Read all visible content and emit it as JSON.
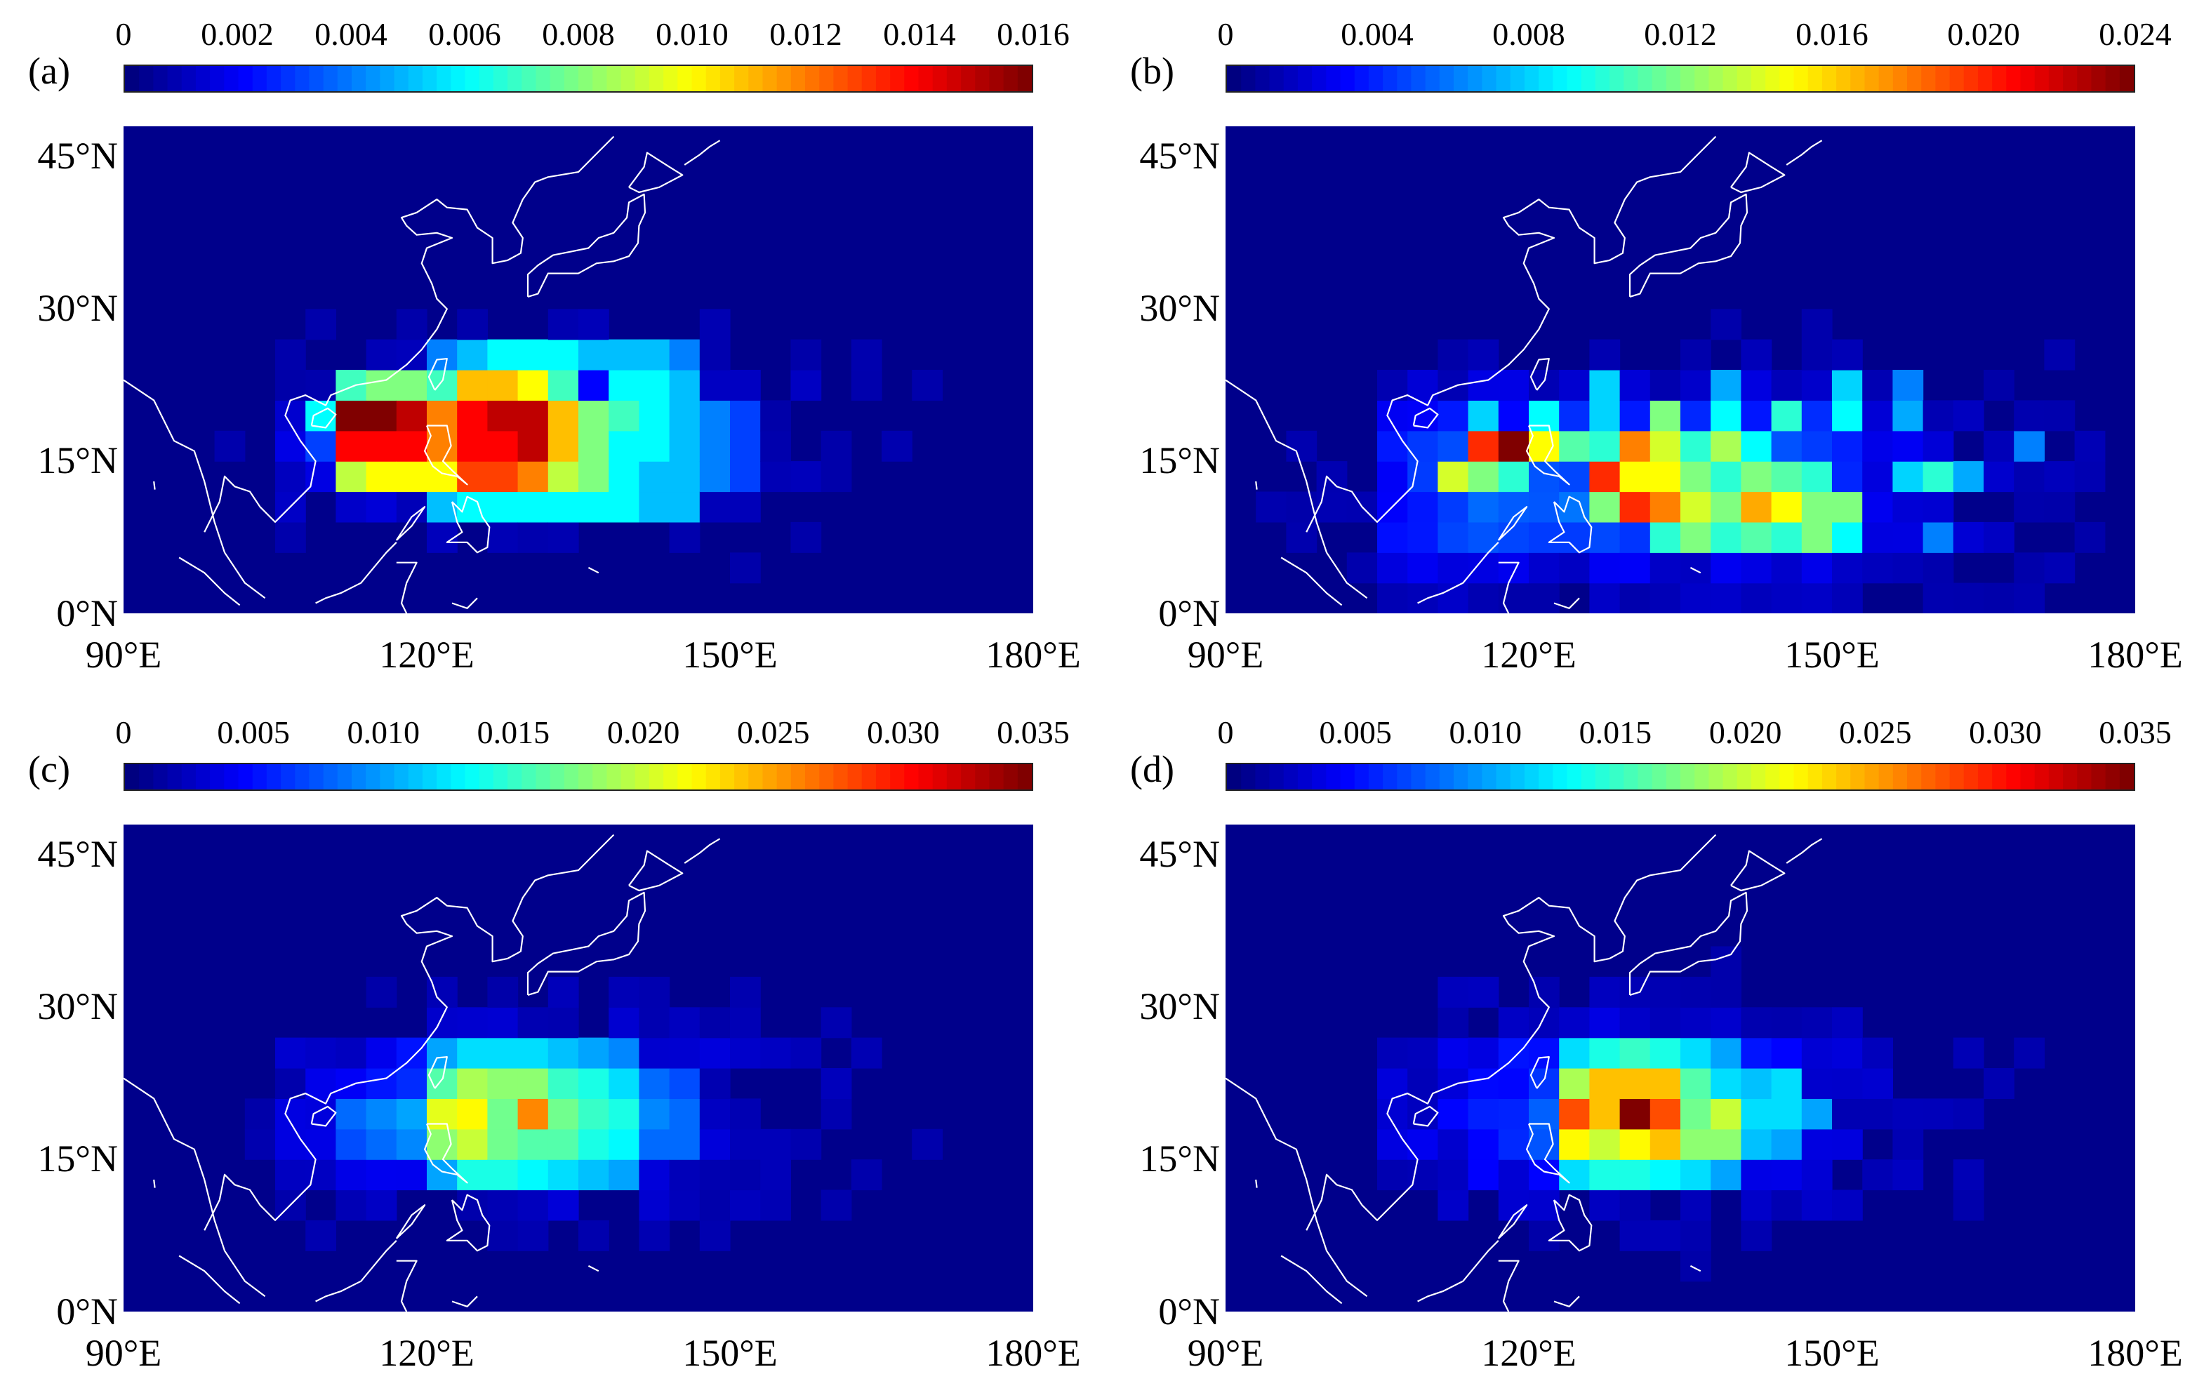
{
  "figure": {
    "lat_labels": [
      "45°N",
      "30°N",
      "15°N",
      "0°N"
    ],
    "lon_labels": [
      "90°E",
      "120°E",
      "150°E",
      "180°E"
    ]
  },
  "panels": [
    {
      "label": "(a)",
      "colorbar": {
        "ticks": [
          "0",
          "0.002",
          "0.004",
          "0.006",
          "0.008",
          "0.010",
          "0.012",
          "0.014",
          "0.016"
        ],
        "max": 0.016
      },
      "peak": {
        "lon": [
          122,
          134
        ],
        "lat": [
          15,
          20
        ]
      }
    },
    {
      "label": "(b)",
      "colorbar": {
        "ticks": [
          "0",
          "0.004",
          "0.008",
          "0.012",
          "0.016",
          "0.020",
          "0.024"
        ],
        "max": 0.024
      },
      "peak": {
        "lon": [
          114,
          146
        ],
        "lat": [
          8,
          18
        ]
      }
    },
    {
      "label": "(c)",
      "colorbar": {
        "ticks": [
          "0",
          "0.005",
          "0.010",
          "0.015",
          "0.020",
          "0.025",
          "0.030",
          "0.035"
        ],
        "max": 0.035
      },
      "peak": {
        "lon": [
          122,
          134
        ],
        "lat": [
          16,
          23
        ]
      }
    },
    {
      "label": "(d)",
      "colorbar": {
        "ticks": [
          "0",
          "0.005",
          "0.010",
          "0.015",
          "0.020",
          "0.025",
          "0.030",
          "0.035"
        ],
        "max": 0.035
      },
      "peak": {
        "lon": [
          123,
          136
        ],
        "lat": [
          16,
          24
        ]
      }
    }
  ],
  "chart_data": [
    {
      "type": "heatmap",
      "title": "(a)",
      "xlim": [
        90,
        180
      ],
      "ylim": [
        0,
        48
      ],
      "cell_deg": 3,
      "colorbar_range": [
        0,
        0.016
      ],
      "colormap": "jet",
      "cells": [
        [
          111,
          20,
          0.016
        ],
        [
          114,
          20,
          0.016
        ],
        [
          117,
          20,
          0.015
        ],
        [
          120,
          20,
          0.012
        ],
        [
          123,
          20,
          0.014
        ],
        [
          126,
          20,
          0.015
        ],
        [
          129,
          20,
          0.015
        ],
        [
          132,
          20,
          0.011
        ],
        [
          135,
          20,
          0.008
        ],
        [
          111,
          17,
          0.014
        ],
        [
          114,
          17,
          0.014
        ],
        [
          117,
          17,
          0.014
        ],
        [
          120,
          17,
          0.012
        ],
        [
          123,
          17,
          0.014
        ],
        [
          126,
          17,
          0.014
        ],
        [
          129,
          17,
          0.015
        ],
        [
          132,
          17,
          0.011
        ],
        [
          135,
          17,
          0.008
        ],
        [
          111,
          14,
          0.009
        ],
        [
          114,
          14,
          0.01
        ],
        [
          117,
          14,
          0.01
        ],
        [
          120,
          14,
          0.01
        ],
        [
          123,
          14,
          0.013
        ],
        [
          126,
          14,
          0.013
        ],
        [
          129,
          14,
          0.012
        ],
        [
          132,
          14,
          0.009
        ],
        [
          135,
          14,
          0.008
        ],
        [
          123,
          23,
          0.011
        ],
        [
          126,
          23,
          0.011
        ],
        [
          129,
          23,
          0.01
        ],
        [
          132,
          23,
          0.007
        ],
        [
          120,
          23,
          0.007
        ],
        [
          117,
          23,
          0.008
        ],
        [
          114,
          23,
          0.008
        ],
        [
          111,
          23,
          0.007
        ],
        [
          138,
          20,
          0.007
        ],
        [
          141,
          20,
          0.006
        ],
        [
          144,
          20,
          0.005
        ],
        [
          138,
          17,
          0.006
        ],
        [
          141,
          17,
          0.006
        ],
        [
          144,
          17,
          0.005
        ],
        [
          138,
          14,
          0.006
        ],
        [
          141,
          14,
          0.005
        ],
        [
          144,
          14,
          0.005
        ],
        [
          138,
          23,
          0.006
        ],
        [
          141,
          23,
          0.006
        ],
        [
          144,
          23,
          0.005
        ],
        [
          147,
          20,
          0.004
        ],
        [
          150,
          20,
          0.003
        ],
        [
          147,
          17,
          0.004
        ],
        [
          150,
          17,
          0.003
        ],
        [
          147,
          14,
          0.004
        ],
        [
          150,
          14,
          0.003
        ],
        [
          120,
          11,
          0.005
        ],
        [
          123,
          11,
          0.006
        ],
        [
          126,
          11,
          0.006
        ],
        [
          129,
          11,
          0.006
        ],
        [
          132,
          11,
          0.006
        ],
        [
          135,
          11,
          0.006
        ],
        [
          138,
          11,
          0.006
        ],
        [
          141,
          11,
          0.005
        ],
        [
          144,
          11,
          0.005
        ],
        [
          126,
          26,
          0.006
        ],
        [
          129,
          26,
          0.006
        ],
        [
          132,
          26,
          0.006
        ],
        [
          135,
          26,
          0.005
        ],
        [
          138,
          26,
          0.005
        ],
        [
          141,
          26,
          0.005
        ],
        [
          144,
          26,
          0.004
        ],
        [
          123,
          26,
          0.005
        ],
        [
          120,
          26,
          0.004
        ],
        [
          108,
          20,
          0.006
        ],
        [
          108,
          17,
          0.003
        ]
      ]
    },
    {
      "type": "heatmap",
      "title": "(b)",
      "xlim": [
        90,
        180
      ],
      "ylim": [
        0,
        48
      ],
      "cell_deg": 3,
      "colorbar_range": [
        0,
        0.024
      ],
      "colormap": "jet",
      "cells": [
        [
          114,
          17,
          0.02
        ],
        [
          117,
          17,
          0.024
        ],
        [
          120,
          17,
          0.015
        ],
        [
          123,
          17,
          0.011
        ],
        [
          126,
          17,
          0.01
        ],
        [
          129,
          17,
          0.018
        ],
        [
          132,
          17,
          0.014
        ],
        [
          135,
          17,
          0.01
        ],
        [
          138,
          17,
          0.013
        ],
        [
          141,
          17,
          0.009
        ],
        [
          111,
          14,
          0.014
        ],
        [
          114,
          14,
          0.012
        ],
        [
          117,
          14,
          0.01
        ],
        [
          126,
          14,
          0.02
        ],
        [
          129,
          14,
          0.015
        ],
        [
          132,
          14,
          0.015
        ],
        [
          135,
          14,
          0.012
        ],
        [
          138,
          14,
          0.01
        ],
        [
          141,
          14,
          0.012
        ],
        [
          144,
          14,
          0.011
        ],
        [
          147,
          14,
          0.01
        ],
        [
          126,
          11,
          0.012
        ],
        [
          129,
          11,
          0.02
        ],
        [
          132,
          11,
          0.018
        ],
        [
          135,
          11,
          0.014
        ],
        [
          138,
          11,
          0.012
        ],
        [
          141,
          11,
          0.017
        ],
        [
          144,
          11,
          0.015
        ],
        [
          147,
          11,
          0.012
        ],
        [
          150,
          11,
          0.012
        ],
        [
          132,
          8,
          0.01
        ],
        [
          135,
          8,
          0.012
        ],
        [
          138,
          8,
          0.01
        ],
        [
          141,
          8,
          0.011
        ],
        [
          144,
          8,
          0.01
        ],
        [
          147,
          8,
          0.012
        ],
        [
          150,
          8,
          0.009
        ],
        [
          114,
          20,
          0.008
        ],
        [
          120,
          20,
          0.009
        ],
        [
          126,
          20,
          0.008
        ],
        [
          132,
          20,
          0.012
        ],
        [
          138,
          20,
          0.009
        ],
        [
          144,
          20,
          0.01
        ],
        [
          150,
          20,
          0.009
        ],
        [
          156,
          20,
          0.007
        ],
        [
          126,
          23,
          0.008
        ],
        [
          138,
          23,
          0.007
        ],
        [
          150,
          23,
          0.008
        ],
        [
          156,
          23,
          0.006
        ],
        [
          159,
          14,
          0.01
        ],
        [
          162,
          14,
          0.007
        ],
        [
          156,
          14,
          0.008
        ],
        [
          159,
          8,
          0.006
        ],
        [
          168,
          17,
          0.006
        ]
      ]
    },
    {
      "type": "heatmap",
      "title": "(c)",
      "xlim": [
        90,
        180
      ],
      "ylim": [
        0,
        48
      ],
      "cell_deg": 3,
      "colorbar_range": [
        0,
        0.035
      ],
      "colormap": "jet",
      "cells": [
        [
          120,
          20,
          0.021
        ],
        [
          123,
          20,
          0.022
        ],
        [
          126,
          20,
          0.017
        ],
        [
          129,
          20,
          0.026
        ],
        [
          132,
          20,
          0.017
        ],
        [
          135,
          20,
          0.015
        ],
        [
          138,
          20,
          0.014
        ],
        [
          120,
          17,
          0.018
        ],
        [
          123,
          17,
          0.02
        ],
        [
          126,
          17,
          0.017
        ],
        [
          129,
          17,
          0.016
        ],
        [
          132,
          17,
          0.016
        ],
        [
          135,
          17,
          0.014
        ],
        [
          138,
          17,
          0.013
        ],
        [
          120,
          23,
          0.016
        ],
        [
          123,
          23,
          0.019
        ],
        [
          126,
          23,
          0.018
        ],
        [
          129,
          23,
          0.018
        ],
        [
          132,
          23,
          0.015
        ],
        [
          135,
          23,
          0.014
        ],
        [
          138,
          23,
          0.012
        ],
        [
          120,
          14,
          0.01
        ],
        [
          123,
          14,
          0.014
        ],
        [
          126,
          14,
          0.014
        ],
        [
          129,
          14,
          0.013
        ],
        [
          132,
          14,
          0.012
        ],
        [
          135,
          14,
          0.011
        ],
        [
          138,
          14,
          0.01
        ],
        [
          120,
          26,
          0.01
        ],
        [
          123,
          26,
          0.012
        ],
        [
          126,
          26,
          0.012
        ],
        [
          129,
          26,
          0.012
        ],
        [
          132,
          26,
          0.011
        ],
        [
          135,
          26,
          0.01
        ],
        [
          138,
          26,
          0.009
        ],
        [
          111,
          20,
          0.008
        ],
        [
          114,
          20,
          0.009
        ],
        [
          117,
          20,
          0.01
        ],
        [
          111,
          17,
          0.007
        ],
        [
          114,
          17,
          0.008
        ],
        [
          117,
          17,
          0.009
        ],
        [
          141,
          20,
          0.009
        ],
        [
          144,
          20,
          0.008
        ],
        [
          141,
          17,
          0.008
        ],
        [
          144,
          17,
          0.008
        ],
        [
          141,
          23,
          0.008
        ],
        [
          144,
          23,
          0.007
        ]
      ]
    },
    {
      "type": "heatmap",
      "title": "(d)",
      "xlim": [
        90,
        180
      ],
      "ylim": [
        0,
        48
      ],
      "cell_deg": 3,
      "colorbar_range": [
        0,
        0.035
      ],
      "colormap": "jet",
      "cells": [
        [
          123,
          20,
          0.028
        ],
        [
          126,
          20,
          0.024
        ],
        [
          129,
          20,
          0.035
        ],
        [
          132,
          20,
          0.028
        ],
        [
          135,
          20,
          0.017
        ],
        [
          138,
          20,
          0.02
        ],
        [
          123,
          17,
          0.022
        ],
        [
          126,
          17,
          0.02
        ],
        [
          129,
          17,
          0.022
        ],
        [
          132,
          17,
          0.024
        ],
        [
          135,
          17,
          0.018
        ],
        [
          138,
          17,
          0.018
        ],
        [
          123,
          23,
          0.019
        ],
        [
          126,
          23,
          0.024
        ],
        [
          129,
          23,
          0.024
        ],
        [
          132,
          23,
          0.024
        ],
        [
          135,
          23,
          0.016
        ],
        [
          138,
          23,
          0.012
        ],
        [
          123,
          14,
          0.012
        ],
        [
          126,
          14,
          0.014
        ],
        [
          129,
          14,
          0.014
        ],
        [
          132,
          14,
          0.013
        ],
        [
          135,
          14,
          0.012
        ],
        [
          138,
          14,
          0.01
        ],
        [
          123,
          26,
          0.012
        ],
        [
          126,
          26,
          0.014
        ],
        [
          129,
          26,
          0.015
        ],
        [
          132,
          26,
          0.014
        ],
        [
          135,
          26,
          0.012
        ],
        [
          138,
          26,
          0.01
        ],
        [
          141,
          20,
          0.012
        ],
        [
          144,
          20,
          0.012
        ],
        [
          141,
          17,
          0.011
        ],
        [
          144,
          17,
          0.01
        ],
        [
          147,
          20,
          0.01
        ],
        [
          141,
          23,
          0.011
        ],
        [
          144,
          23,
          0.012
        ]
      ]
    }
  ]
}
